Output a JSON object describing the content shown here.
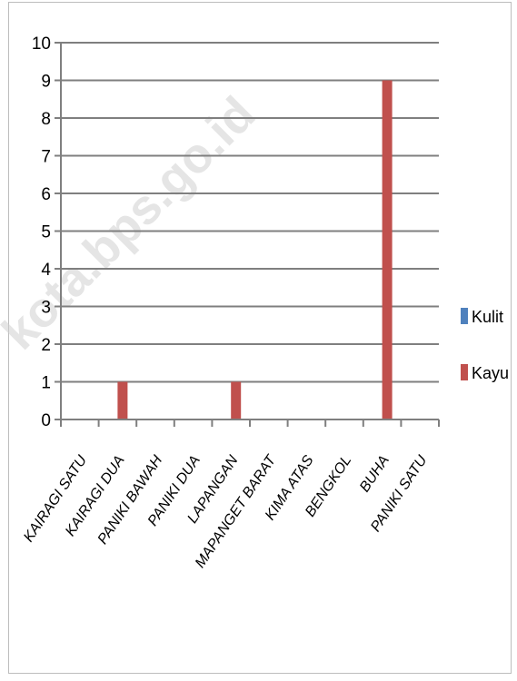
{
  "watermark": "kota.bps.go.id",
  "colors": {
    "gridline": "#7f7f7f",
    "axis": "#7f7f7f",
    "kulit": "#4f81bd",
    "kayu": "#c0504d"
  },
  "chart_data": {
    "type": "bar",
    "title": "",
    "xlabel": "",
    "ylabel": "",
    "categories": [
      "KAIRAGI SATU",
      "KAIRAGI DUA",
      "PANIKI BAWAH",
      "PANIKI DUA",
      "LAPANGAN",
      "MAPANGET BARAT",
      "KIMA ATAS",
      "BENGKOL",
      "BUHA",
      "PANIKI SATU"
    ],
    "series": [
      {
        "name": "Kulit",
        "values": [
          0,
          0,
          0,
          0,
          0,
          0,
          0,
          0,
          0,
          0
        ]
      },
      {
        "name": "Kayu",
        "values": [
          0,
          1,
          0,
          0,
          1,
          0,
          0,
          0,
          9,
          0
        ]
      }
    ],
    "ylim": [
      0,
      10
    ],
    "yticks": [
      "0",
      "1",
      "2",
      "3",
      "4",
      "5",
      "6",
      "7",
      "8",
      "9",
      "10"
    ],
    "grid": true,
    "legend": "right"
  }
}
